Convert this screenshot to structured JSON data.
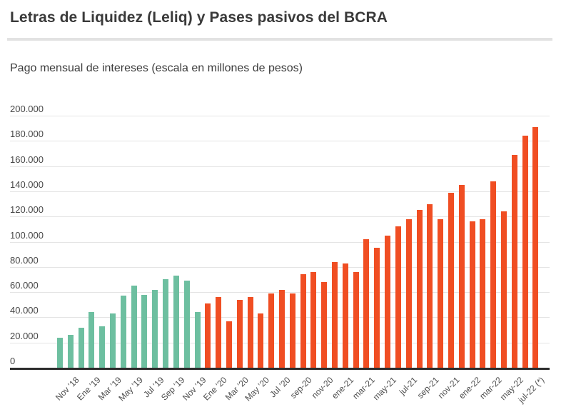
{
  "title": "Letras de Liquidez (Leliq) y Pases pasivos del BCRA",
  "subtitle": "Pago mensual de intereses (escala en millones de pesos)",
  "colors": {
    "bar_green": "#6dbfa0",
    "bar_red": "#f04e23",
    "gridline": "#e4e4e4",
    "axis_line": "#2d2d2d",
    "title_text": "#3a3a3a",
    "tick_text": "#474747"
  },
  "y_axis": {
    "ticks": [
      {
        "value": 0,
        "label": "0"
      },
      {
        "value": 20000,
        "label": "20.000"
      },
      {
        "value": 40000,
        "label": "40.000"
      },
      {
        "value": 60000,
        "label": "60.000"
      },
      {
        "value": 80000,
        "label": "80.000"
      },
      {
        "value": 100000,
        "label": "100.000"
      },
      {
        "value": 120000,
        "label": "120.000"
      },
      {
        "value": 140000,
        "label": "140.000"
      },
      {
        "value": 160000,
        "label": "160.000"
      },
      {
        "value": 180000,
        "label": "180.000"
      },
      {
        "value": 200000,
        "label": "200.000"
      }
    ]
  },
  "chart_data": {
    "type": "bar",
    "title": "Letras de Liquidez (Leliq) y Pases pasivos del BCRA",
    "subtitle": "Pago mensual de intereses (escala en millones de pesos)",
    "ylabel": "millones de pesos",
    "ylim": [
      0,
      200000
    ],
    "y_tick_step": 20000,
    "grid": "horizontal",
    "legend": "none",
    "x_tick_labels": [
      "Nov ’18",
      "Ene ’19",
      "Mar ’19",
      "May ’19",
      "Jul ’19",
      "Sep ’19",
      "Nov ’19",
      "Ene ’20",
      "Mar ’20",
      "May ’20",
      "Jul ’20",
      "sep-20",
      "nov-20",
      "ene-21",
      "mar-21",
      "may-21",
      "jul-21",
      "sep-21",
      "nov-21",
      "ene-22",
      "mar-22",
      "may-22",
      "jul-22 (*)"
    ],
    "bar_colors": {
      "green": "#6dbfa0",
      "red": "#f04e23"
    },
    "bars": [
      {
        "x_label": "",
        "value": 24000,
        "color": "green"
      },
      {
        "x_label": "Nov ’18",
        "value": 26000,
        "color": "green"
      },
      {
        "x_label": "",
        "value": 32000,
        "color": "green"
      },
      {
        "x_label": "Ene ’19",
        "value": 44000,
        "color": "green"
      },
      {
        "x_label": "",
        "value": 33000,
        "color": "green"
      },
      {
        "x_label": "Mar ’19",
        "value": 43000,
        "color": "green"
      },
      {
        "x_label": "",
        "value": 57000,
        "color": "green"
      },
      {
        "x_label": "May ’19",
        "value": 65000,
        "color": "green"
      },
      {
        "x_label": "",
        "value": 58000,
        "color": "green"
      },
      {
        "x_label": "Jul ’19",
        "value": 62000,
        "color": "green"
      },
      {
        "x_label": "",
        "value": 70000,
        "color": "green"
      },
      {
        "x_label": "Sep ’19",
        "value": 73000,
        "color": "green"
      },
      {
        "x_label": "",
        "value": 69000,
        "color": "green"
      },
      {
        "x_label": "Nov ’19",
        "value": 44000,
        "color": "green"
      },
      {
        "x_label": "",
        "value": 51000,
        "color": "red"
      },
      {
        "x_label": "Ene ’20",
        "value": 56000,
        "color": "red"
      },
      {
        "x_label": "",
        "value": 37000,
        "color": "red"
      },
      {
        "x_label": "Mar ’20",
        "value": 54000,
        "color": "red"
      },
      {
        "x_label": "",
        "value": 56000,
        "color": "red"
      },
      {
        "x_label": "May ’20",
        "value": 43000,
        "color": "red"
      },
      {
        "x_label": "",
        "value": 59000,
        "color": "red"
      },
      {
        "x_label": "Jul ’20",
        "value": 62000,
        "color": "red"
      },
      {
        "x_label": "",
        "value": 59000,
        "color": "red"
      },
      {
        "x_label": "sep-20",
        "value": 74000,
        "color": "red"
      },
      {
        "x_label": "",
        "value": 76000,
        "color": "red"
      },
      {
        "x_label": "nov-20",
        "value": 68000,
        "color": "red"
      },
      {
        "x_label": "",
        "value": 84000,
        "color": "red"
      },
      {
        "x_label": "ene-21",
        "value": 83000,
        "color": "red"
      },
      {
        "x_label": "",
        "value": 76000,
        "color": "red"
      },
      {
        "x_label": "mar-21",
        "value": 102000,
        "color": "red"
      },
      {
        "x_label": "",
        "value": 95000,
        "color": "red"
      },
      {
        "x_label": "may-21",
        "value": 105000,
        "color": "red"
      },
      {
        "x_label": "",
        "value": 112000,
        "color": "red"
      },
      {
        "x_label": "jul-21",
        "value": 118000,
        "color": "red"
      },
      {
        "x_label": "",
        "value": 125000,
        "color": "red"
      },
      {
        "x_label": "sep-21",
        "value": 130000,
        "color": "red"
      },
      {
        "x_label": "",
        "value": 118000,
        "color": "red"
      },
      {
        "x_label": "nov-21",
        "value": 139000,
        "color": "red"
      },
      {
        "x_label": "",
        "value": 145000,
        "color": "red"
      },
      {
        "x_label": "ene-22",
        "value": 116000,
        "color": "red"
      },
      {
        "x_label": "",
        "value": 118000,
        "color": "red"
      },
      {
        "x_label": "mar-22",
        "value": 148000,
        "color": "red"
      },
      {
        "x_label": "",
        "value": 124000,
        "color": "red"
      },
      {
        "x_label": "may-22",
        "value": 169000,
        "color": "red"
      },
      {
        "x_label": "",
        "value": 184000,
        "color": "red"
      },
      {
        "x_label": "jul-22 (*)",
        "value": 191000,
        "color": "red"
      }
    ]
  }
}
